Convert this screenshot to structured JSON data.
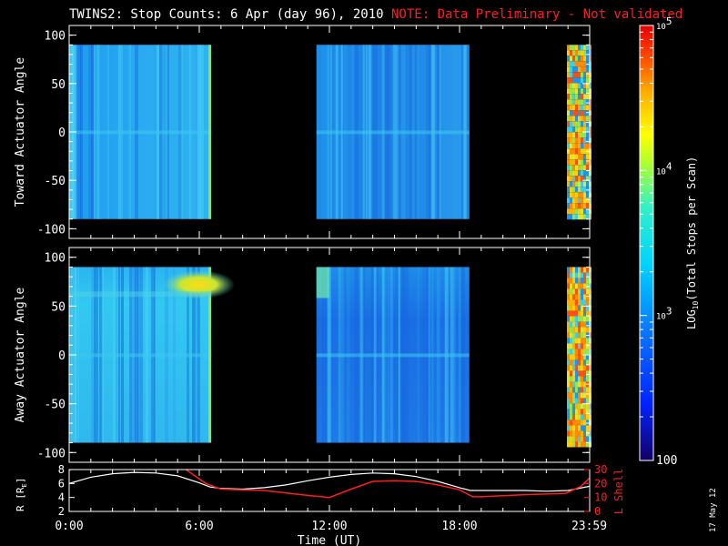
{
  "header": {
    "title": "TWINS2: Stop Counts:  6 Apr (day  96), 2010",
    "note": "NOTE: Data Preliminary - Not validated"
  },
  "date_stamp": "17 May 12",
  "colors": {
    "background": "#000000",
    "axes": "#ffffff",
    "note": "#ff1e1e",
    "r_line": "#ffffff",
    "lshell_line": "#ff1e1e"
  },
  "chart_data": [
    {
      "type": "heatmap",
      "ylabel": "Toward Actuator Angle",
      "ylim": [
        -110,
        110
      ],
      "yticks": [
        {
          "value": 100,
          "label": "100"
        },
        {
          "value": 50,
          "label": "50"
        },
        {
          "value": 0,
          "label": "0"
        },
        {
          "value": -50,
          "label": "-50"
        },
        {
          "value": -100,
          "label": "-100"
        }
      ],
      "angle_range": [
        -90,
        90
      ],
      "x_hours": [
        0,
        24
      ],
      "data_segments_hours": [
        [
          0,
          6.55
        ],
        [
          11.4,
          18.45
        ],
        [
          22.95,
          24
        ]
      ]
    },
    {
      "type": "heatmap",
      "ylabel": "Away Actuator Angle",
      "ylim": [
        -110,
        110
      ],
      "yticks": [
        {
          "value": 100,
          "label": "100"
        },
        {
          "value": 50,
          "label": "50"
        },
        {
          "value": 0,
          "label": "0"
        },
        {
          "value": -50,
          "label": "-50"
        },
        {
          "value": -100,
          "label": "-100"
        }
      ],
      "angle_range": [
        -90,
        90
      ],
      "x_hours": [
        0,
        24
      ],
      "data_segments_hours": [
        [
          0,
          6.55
        ],
        [
          11.4,
          18.45
        ],
        [
          22.95,
          24
        ]
      ]
    },
    {
      "type": "line",
      "xlabel": "Time (UT)",
      "ylabel": "R [R",
      "ylabel_sub": "E",
      "ylabel_close": "]",
      "ylim": [
        2,
        8
      ],
      "yticks": [
        "2",
        "4",
        "6",
        "8"
      ],
      "ylabel_right": "L Shell",
      "ylim_right": [
        0,
        30
      ],
      "yticks_right": [
        "0",
        "10",
        "20",
        "30"
      ],
      "x_hours": [
        0,
        24
      ],
      "xticks": [
        {
          "value": 0,
          "label": "0:00"
        },
        {
          "value": 6,
          "label": "6:00"
        },
        {
          "value": 12,
          "label": "12:00"
        },
        {
          "value": 18,
          "label": "18:00"
        },
        {
          "value": 23.98,
          "label": "23:59"
        }
      ],
      "series": [
        {
          "name": "R",
          "axis": "left",
          "x": [
            0,
            1,
            2,
            3,
            4,
            5,
            6,
            6.5,
            7,
            8,
            9,
            10,
            11,
            12,
            13,
            14,
            15,
            16,
            17,
            18,
            18.5,
            19,
            20,
            21,
            22,
            23,
            24
          ],
          "y": [
            6.0,
            6.9,
            7.4,
            7.6,
            7.5,
            7.1,
            6.1,
            5.5,
            5.3,
            5.2,
            5.4,
            5.8,
            6.4,
            6.9,
            7.3,
            7.5,
            7.4,
            7.0,
            6.3,
            5.4,
            5.0,
            5.0,
            5.0,
            5.0,
            4.9,
            5.0,
            5.6
          ]
        },
        {
          "name": "L Shell",
          "axis": "right",
          "x": [
            0,
            0.4,
            5.2,
            6.3,
            7,
            9,
            11,
            12,
            13,
            14,
            15,
            16,
            17,
            18,
            18.6,
            19,
            21,
            22.9,
            23.6,
            24
          ],
          "y": [
            29.5,
            32,
            32,
            20,
            16,
            15,
            11.5,
            10,
            16,
            21.5,
            22,
            21.5,
            19,
            15.5,
            10.5,
            10.5,
            12,
            13,
            18,
            24
          ]
        }
      ]
    }
  ],
  "colorbar": {
    "label_main": "LOG",
    "label_sub": "10",
    "label_rest": "(Total Stops per Scan)",
    "min": 100,
    "max": 100000,
    "ticks": [
      {
        "value": 100000,
        "base": "10",
        "exp": "5"
      },
      {
        "value": 10000,
        "base": "10",
        "exp": "4"
      },
      {
        "value": 1000,
        "base": "10",
        "exp": "3"
      },
      {
        "value": 100,
        "base": "100",
        "exp": ""
      }
    ]
  }
}
